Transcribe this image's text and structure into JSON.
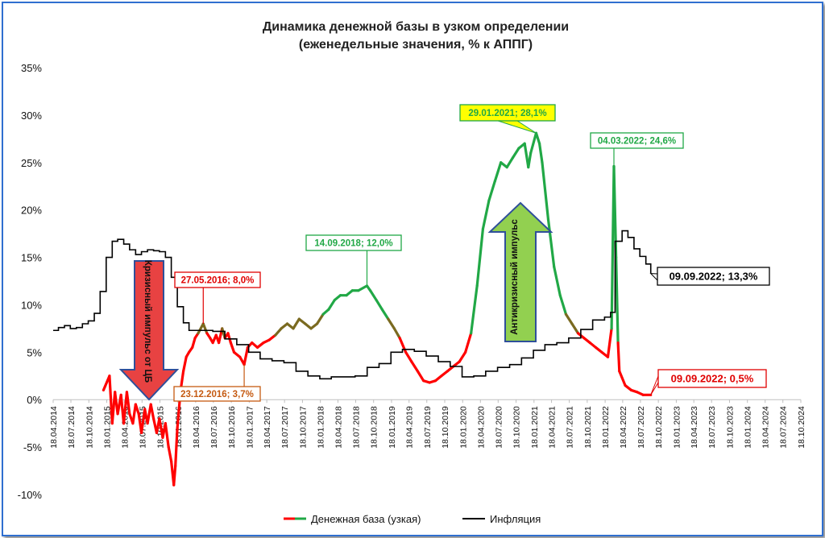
{
  "chart_data": {
    "type": "line",
    "title": "Динамика денежной базы в узком определении",
    "subtitle": "(еженедельные значения, % к АППГ)",
    "xlabel": "",
    "ylabel": "",
    "ylim": [
      -10,
      35
    ],
    "y_ticks": [
      "-10%",
      "-5%",
      "0%",
      "5%",
      "10%",
      "15%",
      "20%",
      "25%",
      "30%",
      "35%"
    ],
    "x_ticks": [
      "18.04.2014",
      "18.07.2014",
      "18.10.2014",
      "18.01.2015",
      "18.04.2015",
      "18.07.2015",
      "18.10.2015",
      "18.01.2016",
      "18.04.2016",
      "18.07.2016",
      "18.10.2016",
      "18.01.2017",
      "18.04.2017",
      "18.07.2017",
      "18.10.2017",
      "18.01.2018",
      "18.04.2018",
      "18.07.2018",
      "18.10.2018",
      "18.01.2019",
      "18.04.2019",
      "18.07.2019",
      "18.10.2019",
      "18.01.2020",
      "18.04.2020",
      "18.07.2020",
      "18.10.2020",
      "18.01.2021",
      "18.04.2021",
      "18.07.2021",
      "18.10.2021",
      "18.01.2022",
      "18.04.2022",
      "18.07.2022",
      "18.10.2022",
      "18.01.2023",
      "18.04.2023",
      "18.07.2023",
      "18.10.2023",
      "18.01.2024",
      "18.04.2024",
      "18.07.2024",
      "18.10.2024"
    ],
    "grid": false,
    "legend_position": "bottom",
    "series": [
      {
        "name": "Денежная база (узкая)",
        "color_low": "#ff0000",
        "color_high": "#21a846",
        "points": [
          [
            "2015-01-01",
            1.0
          ],
          [
            "2015-02-01",
            2.5
          ],
          [
            "2015-02-15",
            -2.5
          ],
          [
            "2015-03-01",
            0.8
          ],
          [
            "2015-03-15",
            -1.5
          ],
          [
            "2015-04-01",
            0.5
          ],
          [
            "2015-04-15",
            -2.5
          ],
          [
            "2015-05-01",
            0.8
          ],
          [
            "2015-05-15",
            -1.5
          ],
          [
            "2015-06-01",
            -2.5
          ],
          [
            "2015-06-15",
            -0.5
          ],
          [
            "2015-07-01",
            -1.5
          ],
          [
            "2015-07-15",
            -3.5
          ],
          [
            "2015-08-01",
            -1.0
          ],
          [
            "2015-08-15",
            -2.5
          ],
          [
            "2015-09-01",
            -0.5
          ],
          [
            "2015-09-15",
            -2.0
          ],
          [
            "2015-10-01",
            -3.5
          ],
          [
            "2015-10-15",
            -2.0
          ],
          [
            "2015-11-01",
            -4.0
          ],
          [
            "2015-11-15",
            -2.5
          ],
          [
            "2015-12-01",
            -5.0
          ],
          [
            "2015-12-15",
            -6.5
          ],
          [
            "2015-12-28",
            -9.0
          ],
          [
            "2016-01-05",
            -7.0
          ],
          [
            "2016-01-15",
            -3.0
          ],
          [
            "2016-02-01",
            1.0
          ],
          [
            "2016-02-15",
            3.0
          ],
          [
            "2016-03-01",
            4.5
          ],
          [
            "2016-03-15",
            5.0
          ],
          [
            "2016-04-01",
            5.5
          ],
          [
            "2016-04-15",
            6.5
          ],
          [
            "2016-05-01",
            7.0
          ],
          [
            "2016-05-27",
            8.0
          ],
          [
            "2016-06-15",
            7.0
          ],
          [
            "2016-07-01",
            6.5
          ],
          [
            "2016-07-15",
            6.0
          ],
          [
            "2016-08-01",
            6.8
          ],
          [
            "2016-08-15",
            6.0
          ],
          [
            "2016-09-01",
            7.5
          ],
          [
            "2016-09-15",
            6.5
          ],
          [
            "2016-10-01",
            7.0
          ],
          [
            "2016-10-15",
            6.0
          ],
          [
            "2016-11-01",
            5.0
          ],
          [
            "2016-12-01",
            4.5
          ],
          [
            "2016-12-23",
            3.7
          ],
          [
            "2017-01-10",
            5.5
          ],
          [
            "2017-02-01",
            6.0
          ],
          [
            "2017-03-01",
            5.5
          ],
          [
            "2017-04-01",
            6.0
          ],
          [
            "2017-05-01",
            6.3
          ],
          [
            "2017-06-01",
            6.8
          ],
          [
            "2017-07-01",
            7.5
          ],
          [
            "2017-08-01",
            8.0
          ],
          [
            "2017-09-01",
            7.5
          ],
          [
            "2017-10-01",
            8.5
          ],
          [
            "2017-11-01",
            8.0
          ],
          [
            "2017-12-01",
            7.5
          ],
          [
            "2018-01-01",
            8.0
          ],
          [
            "2018-02-01",
            9.0
          ],
          [
            "2018-03-01",
            9.5
          ],
          [
            "2018-04-01",
            10.5
          ],
          [
            "2018-05-01",
            11.0
          ],
          [
            "2018-06-01",
            11.0
          ],
          [
            "2018-07-01",
            11.5
          ],
          [
            "2018-08-01",
            11.5
          ],
          [
            "2018-09-14",
            12.0
          ],
          [
            "2018-10-01",
            11.5
          ],
          [
            "2018-11-01",
            10.5
          ],
          [
            "2018-12-01",
            9.5
          ],
          [
            "2019-01-01",
            8.5
          ],
          [
            "2019-02-01",
            7.5
          ],
          [
            "2019-03-01",
            6.5
          ],
          [
            "2019-04-01",
            5.0
          ],
          [
            "2019-05-01",
            4.0
          ],
          [
            "2019-06-01",
            3.0
          ],
          [
            "2019-07-01",
            2.0
          ],
          [
            "2019-08-01",
            1.8
          ],
          [
            "2019-09-01",
            2.0
          ],
          [
            "2019-10-01",
            2.5
          ],
          [
            "2019-11-01",
            3.0
          ],
          [
            "2019-12-01",
            3.5
          ],
          [
            "2020-01-01",
            4.0
          ],
          [
            "2020-02-01",
            5.0
          ],
          [
            "2020-03-01",
            7.0
          ],
          [
            "2020-04-01",
            12.0
          ],
          [
            "2020-05-01",
            18.0
          ],
          [
            "2020-06-01",
            21.0
          ],
          [
            "2020-07-01",
            23.0
          ],
          [
            "2020-08-01",
            25.0
          ],
          [
            "2020-09-01",
            24.5
          ],
          [
            "2020-10-01",
            25.5
          ],
          [
            "2020-11-01",
            26.5
          ],
          [
            "2020-12-01",
            27.0
          ],
          [
            "2020-12-20",
            24.5
          ],
          [
            "2021-01-01",
            26.0
          ],
          [
            "2021-01-29",
            28.1
          ],
          [
            "2021-02-15",
            27.0
          ],
          [
            "2021-03-01",
            25.0
          ],
          [
            "2021-04-01",
            19.0
          ],
          [
            "2021-05-01",
            14.0
          ],
          [
            "2021-06-01",
            11.0
          ],
          [
            "2021-07-01",
            9.0
          ],
          [
            "2021-08-01",
            8.0
          ],
          [
            "2021-09-01",
            7.0
          ],
          [
            "2021-10-01",
            6.5
          ],
          [
            "2021-11-01",
            6.0
          ],
          [
            "2021-12-01",
            5.5
          ],
          [
            "2022-01-01",
            5.0
          ],
          [
            "2022-02-01",
            4.5
          ],
          [
            "2022-02-20",
            7.5
          ],
          [
            "2022-03-04",
            24.6
          ],
          [
            "2022-03-15",
            15.0
          ],
          [
            "2022-03-25",
            6.0
          ],
          [
            "2022-04-01",
            3.0
          ],
          [
            "2022-05-01",
            1.5
          ],
          [
            "2022-06-01",
            1.0
          ],
          [
            "2022-07-01",
            0.8
          ],
          [
            "2022-08-01",
            0.5
          ],
          [
            "2022-09-09",
            0.5
          ]
        ]
      },
      {
        "name": "Инфляция",
        "color": "#000000",
        "points": [
          [
            "2014-04-18",
            7.3
          ],
          [
            "2014-05-15",
            7.6
          ],
          [
            "2014-06-15",
            7.8
          ],
          [
            "2014-07-15",
            7.5
          ],
          [
            "2014-08-15",
            7.6
          ],
          [
            "2014-09-15",
            8.0
          ],
          [
            "2014-10-15",
            8.3
          ],
          [
            "2014-11-15",
            9.1
          ],
          [
            "2014-12-15",
            11.4
          ],
          [
            "2015-01-15",
            15.0
          ],
          [
            "2015-02-15",
            16.7
          ],
          [
            "2015-03-15",
            16.9
          ],
          [
            "2015-04-15",
            16.4
          ],
          [
            "2015-05-15",
            15.8
          ],
          [
            "2015-06-15",
            15.3
          ],
          [
            "2015-07-15",
            15.6
          ],
          [
            "2015-08-15",
            15.8
          ],
          [
            "2015-09-15",
            15.7
          ],
          [
            "2015-10-15",
            15.6
          ],
          [
            "2015-11-15",
            15.0
          ],
          [
            "2015-12-15",
            12.9
          ],
          [
            "2016-01-15",
            9.8
          ],
          [
            "2016-02-15",
            8.1
          ],
          [
            "2016-03-15",
            7.3
          ],
          [
            "2016-05-15",
            7.3
          ],
          [
            "2016-07-15",
            7.2
          ],
          [
            "2016-09-15",
            6.4
          ],
          [
            "2016-11-15",
            5.8
          ],
          [
            "2017-01-15",
            5.0
          ],
          [
            "2017-03-15",
            4.3
          ],
          [
            "2017-05-15",
            4.1
          ],
          [
            "2017-07-15",
            3.9
          ],
          [
            "2017-09-15",
            3.0
          ],
          [
            "2017-11-15",
            2.5
          ],
          [
            "2018-01-15",
            2.2
          ],
          [
            "2018-03-15",
            2.4
          ],
          [
            "2018-05-15",
            2.4
          ],
          [
            "2018-07-15",
            2.5
          ],
          [
            "2018-09-15",
            3.4
          ],
          [
            "2018-11-15",
            3.8
          ],
          [
            "2019-01-15",
            5.0
          ],
          [
            "2019-03-15",
            5.3
          ],
          [
            "2019-05-15",
            5.1
          ],
          [
            "2019-07-15",
            4.6
          ],
          [
            "2019-09-15",
            4.0
          ],
          [
            "2019-11-15",
            3.5
          ],
          [
            "2020-01-15",
            2.4
          ],
          [
            "2020-03-15",
            2.5
          ],
          [
            "2020-05-15",
            3.0
          ],
          [
            "2020-07-15",
            3.4
          ],
          [
            "2020-09-15",
            3.7
          ],
          [
            "2020-11-15",
            4.4
          ],
          [
            "2021-01-15",
            5.2
          ],
          [
            "2021-03-15",
            5.8
          ],
          [
            "2021-05-15",
            6.0
          ],
          [
            "2021-07-15",
            6.5
          ],
          [
            "2021-09-15",
            7.4
          ],
          [
            "2021-11-15",
            8.4
          ],
          [
            "2022-01-15",
            8.7
          ],
          [
            "2022-02-15",
            9.2
          ],
          [
            "2022-03-10",
            16.7
          ],
          [
            "2022-04-15",
            17.8
          ],
          [
            "2022-05-15",
            17.1
          ],
          [
            "2022-06-15",
            15.9
          ],
          [
            "2022-07-15",
            15.1
          ],
          [
            "2022-08-15",
            14.3
          ],
          [
            "2022-09-09",
            13.3
          ]
        ]
      }
    ],
    "annotations": [
      {
        "text": "27.05.2016; 8,0%",
        "date": "2016-05-27",
        "value": 8.0,
        "color": "#e00000",
        "fill": "#ffffff"
      },
      {
        "text": "23.12.2016; 3,7%",
        "date": "2016-12-23",
        "value": 3.7,
        "color": "#c55a11",
        "fill": "#ffffff"
      },
      {
        "text": "14.09.2018; 12,0%",
        "date": "2018-09-14",
        "value": 12.0,
        "color": "#21a846",
        "fill": "#ffffff"
      },
      {
        "text": "29.01.2021; 28,1%",
        "date": "2021-01-29",
        "value": 28.1,
        "color": "#21a846",
        "fill": "#ffff00"
      },
      {
        "text": "04.03.2022; 24,6%",
        "date": "2022-03-04",
        "value": 24.6,
        "color": "#21a846",
        "fill": "#ffffff"
      },
      {
        "text": "09.09.2022; 13,3%",
        "date": "2022-09-09",
        "value": 13.3,
        "color": "#000000",
        "fill": "#ffffff"
      },
      {
        "text": "09.09.2022; 0,5%",
        "date": "2022-09-09",
        "value": 0.5,
        "color": "#e00000",
        "fill": "#ffffff"
      }
    ],
    "arrows": [
      {
        "text": "Кризисный импульс от ЦБ",
        "direction": "down",
        "color": "#e84242"
      },
      {
        "text": "Антикризисный импульс",
        "direction": "up",
        "color": "#92d050"
      }
    ]
  }
}
